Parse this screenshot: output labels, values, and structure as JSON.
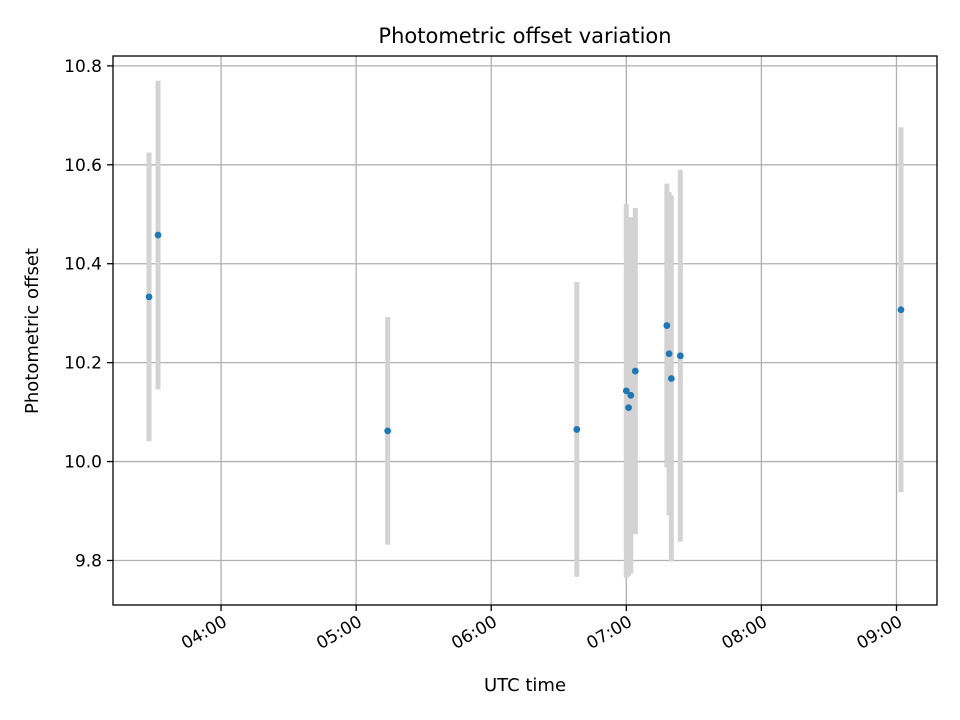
{
  "chart_data": {
    "type": "scatter",
    "title": "Photometric offset variation",
    "xlabel": "UTC time",
    "ylabel": "Photometric offset",
    "xlim": [
      "03:12",
      "09:18"
    ],
    "ylim": [
      9.71,
      10.82
    ],
    "grid": true,
    "xticks": [
      "04:00",
      "05:00",
      "06:00",
      "07:00",
      "08:00",
      "09:00"
    ],
    "yticks": [
      9.8,
      10.0,
      10.2,
      10.4,
      10.6,
      10.8
    ],
    "colors": {
      "point": "#1f77b4",
      "errorbar": "#d3d3d3",
      "grid": "#b0b0b0"
    },
    "points": [
      {
        "x": "03:28",
        "y": 10.333,
        "err": 0.292
      },
      {
        "x": "03:32",
        "y": 10.458,
        "err": 0.312
      },
      {
        "x": "05:14",
        "y": 10.062,
        "err": 0.23
      },
      {
        "x": "06:38",
        "y": 10.065,
        "err": 0.298
      },
      {
        "x": "07:00",
        "y": 10.143,
        "err": 0.378
      },
      {
        "x": "07:01",
        "y": 10.109,
        "err": 0.34
      },
      {
        "x": "07:02",
        "y": 10.134,
        "err": 0.36
      },
      {
        "x": "07:04",
        "y": 10.183,
        "err": 0.33
      },
      {
        "x": "07:18",
        "y": 10.275,
        "err": 0.287
      },
      {
        "x": "07:19",
        "y": 10.218,
        "err": 0.327
      },
      {
        "x": "07:20",
        "y": 10.168,
        "err": 0.37
      },
      {
        "x": "07:24",
        "y": 10.214,
        "err": 0.376
      },
      {
        "x": "09:02",
        "y": 10.307,
        "err": 0.369
      }
    ]
  }
}
